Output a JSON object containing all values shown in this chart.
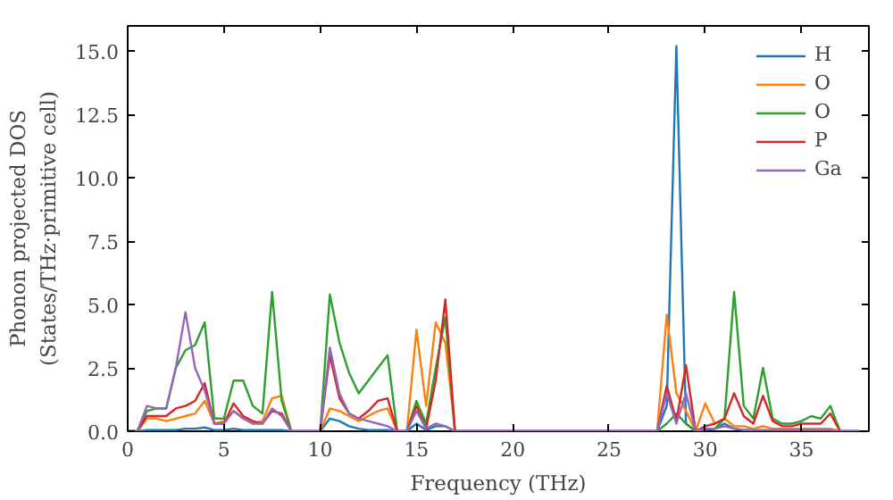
{
  "chart_data": {
    "type": "line",
    "xlabel": "Frequency (THz)",
    "ylabel": "Phonon projected DOS\n(States/THz·primitive cell)",
    "x": [
      0,
      0.5,
      1,
      1.5,
      2,
      2.5,
      3,
      3.5,
      4,
      4.5,
      5,
      5.5,
      6,
      6.5,
      7,
      7.5,
      8,
      8.5,
      9,
      9.5,
      10,
      10.5,
      11,
      11.5,
      12,
      12.5,
      13,
      13.5,
      14,
      14.5,
      15,
      15.5,
      16,
      16.5,
      17,
      17.5,
      18,
      18.5,
      19,
      19.5,
      20,
      20.5,
      21,
      21.5,
      22,
      22.5,
      23,
      23.5,
      24,
      24.5,
      25,
      25.5,
      26,
      26.5,
      27,
      27.5,
      28,
      28.5,
      29,
      29.5,
      30,
      30.5,
      31,
      31.5,
      32,
      32.5,
      33,
      33.5,
      34,
      34.5,
      35,
      35.5,
      36,
      36.5,
      37,
      37.5,
      38
    ],
    "series": [
      {
        "name": "H",
        "color": "#1f77b4",
        "values": [
          0,
          0,
          0.05,
          0.05,
          0.05,
          0.05,
          0.1,
          0.1,
          0.15,
          0.05,
          0.05,
          0.1,
          0.05,
          0.05,
          0.05,
          0.05,
          0.05,
          0,
          0,
          0,
          0,
          0.5,
          0.4,
          0.2,
          0.1,
          0.05,
          0.05,
          0.05,
          0,
          0,
          0.3,
          0.05,
          0.2,
          0.2,
          0,
          0,
          0,
          0,
          0,
          0,
          0,
          0,
          0,
          0,
          0,
          0,
          0,
          0,
          0,
          0,
          0,
          0,
          0,
          0,
          0,
          0,
          1.0,
          15.2,
          0.3,
          0,
          0.05,
          0.1,
          0.3,
          0.1,
          0.05,
          0.05,
          null,
          null,
          null,
          null,
          null,
          null,
          null,
          null,
          null,
          null,
          null
        ]
      },
      {
        "name": "O",
        "color": "#ff7f0e",
        "values": [
          0,
          0,
          0.5,
          0.5,
          0.4,
          0.5,
          0.6,
          0.7,
          1.2,
          0.3,
          0.4,
          0.8,
          0.5,
          0.3,
          0.4,
          1.3,
          1.4,
          0,
          0,
          0,
          0,
          0.9,
          0.8,
          0.6,
          0.4,
          0.6,
          0.8,
          0.9,
          0,
          0,
          4.0,
          1.0,
          4.3,
          3.5,
          0,
          0,
          0,
          0,
          0,
          0,
          0,
          0,
          0,
          0,
          0,
          0,
          0,
          0,
          0,
          0,
          0,
          0,
          0,
          0,
          0,
          0,
          4.6,
          1.5,
          0.8,
          0,
          1.1,
          0.3,
          0.5,
          0.2,
          0.2,
          0.1,
          0.2,
          0.1,
          0.1,
          0.1,
          0.1,
          0.1,
          0.1,
          0.1,
          0,
          0,
          0
        ]
      },
      {
        "name": "O",
        "color": "#2ca02c",
        "values": [
          0,
          0,
          0.8,
          0.9,
          0.9,
          2.5,
          3.2,
          3.4,
          4.3,
          0.5,
          0.5,
          2.0,
          2.0,
          1.0,
          0.7,
          5.5,
          1.2,
          0,
          0,
          0,
          0,
          5.4,
          3.5,
          2.3,
          1.5,
          2.0,
          2.5,
          3.0,
          0,
          0,
          1.2,
          0.3,
          2.5,
          4.5,
          0,
          0,
          0,
          0,
          0,
          0,
          0,
          0,
          0,
          0,
          0,
          0,
          0,
          0,
          0,
          0,
          0,
          0,
          0,
          0,
          0,
          0,
          0.3,
          0.7,
          0.3,
          0,
          0.1,
          0.1,
          0.5,
          5.5,
          1.0,
          0.5,
          2.5,
          0.5,
          0.3,
          0.3,
          0.4,
          0.6,
          0.5,
          1.0,
          0,
          0,
          0
        ]
      },
      {
        "name": "P",
        "color": "#d62728",
        "values": [
          0,
          0,
          0.6,
          0.6,
          0.6,
          0.9,
          1.0,
          1.2,
          1.9,
          0.3,
          0.3,
          1.1,
          0.6,
          0.4,
          0.3,
          0.8,
          0.7,
          0,
          0,
          0,
          0,
          3.0,
          1.3,
          0.7,
          0.5,
          0.8,
          1.2,
          1.3,
          0,
          0,
          1.0,
          0.1,
          2.0,
          5.2,
          0,
          0,
          0,
          0,
          0,
          0,
          0,
          0,
          0,
          0,
          0,
          0,
          0,
          0,
          0,
          0,
          0,
          0,
          0,
          0,
          0,
          0,
          1.8,
          0.4,
          2.6,
          0,
          0.2,
          0.3,
          0.5,
          1.5,
          0.6,
          0.3,
          1.4,
          0.4,
          0.2,
          0.2,
          0.3,
          0.3,
          0.3,
          0.7,
          0,
          0,
          0
        ]
      },
      {
        "name": "Ga",
        "color": "#9467bd",
        "values": [
          0,
          0,
          1.0,
          0.9,
          0.9,
          2.5,
          4.7,
          2.5,
          1.6,
          0.3,
          0.3,
          0.8,
          0.5,
          0.3,
          0.3,
          0.9,
          0.6,
          0,
          0,
          0,
          0,
          3.3,
          1.5,
          0.7,
          0.5,
          0.4,
          0.3,
          0.2,
          0,
          0,
          0.8,
          0.1,
          0.3,
          0.2,
          0,
          0,
          0,
          0,
          0,
          0,
          0,
          0,
          0,
          0,
          0,
          0,
          0,
          0,
          0,
          0,
          0,
          0,
          0,
          0,
          0,
          0,
          1.5,
          0.3,
          1.5,
          0,
          0.1,
          0.1,
          0.2,
          0.1,
          0.05,
          0.05,
          0.05,
          0.05,
          0.05,
          0.05,
          0.05,
          0.05,
          0.05,
          0.05,
          0,
          0,
          0
        ]
      }
    ],
    "xlim": [
      0,
      38.5
    ],
    "ylim": [
      0,
      16
    ],
    "xticks": [
      0,
      5,
      10,
      15,
      20,
      25,
      30,
      35
    ],
    "yticks": [
      {
        "value": 0,
        "label": "0.0"
      },
      {
        "value": 2.5,
        "label": "2.5"
      },
      {
        "value": 5,
        "label": "5.0"
      },
      {
        "value": 7.5,
        "label": "7.5"
      },
      {
        "value": 10,
        "label": "10.0"
      },
      {
        "value": 12.5,
        "label": "12.5"
      },
      {
        "value": 15,
        "label": "15.0"
      }
    ],
    "legend": "top right",
    "grid": false,
    "marker": "none",
    "line_style": "solid"
  }
}
